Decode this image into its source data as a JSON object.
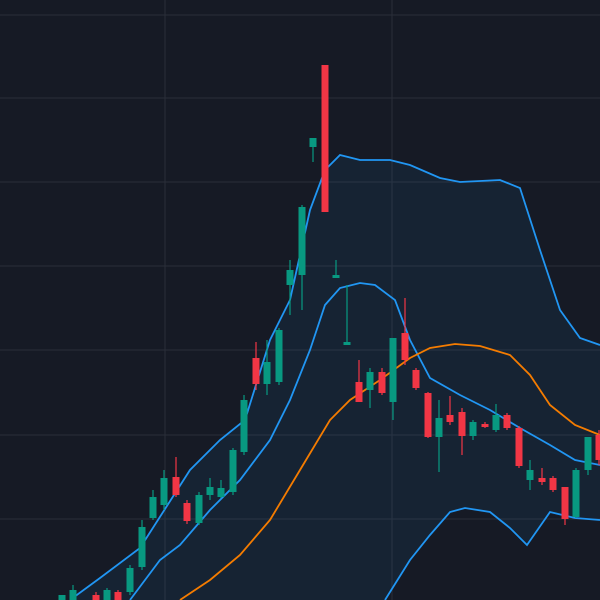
{
  "chart_data": {
    "type": "candlestick",
    "xlim": [
      0,
      600
    ],
    "ylim": [
      0,
      600
    ],
    "xticks": [
      165,
      392
    ],
    "yticks": [
      81,
      165,
      250,
      334,
      418,
      502,
      585
    ],
    "grid": true,
    "up_color": "#089981",
    "down_color": "#f23645",
    "candles": {
      "x": [
        62,
        73,
        96,
        107,
        118,
        130,
        142,
        153,
        164,
        176,
        187,
        199,
        210,
        221,
        233,
        244,
        256,
        267,
        279,
        290,
        302,
        313,
        325,
        336,
        347,
        359,
        370,
        382,
        393,
        405,
        416,
        428,
        439,
        450,
        462,
        473,
        485,
        496,
        507,
        519,
        530,
        542,
        553,
        565,
        576,
        588,
        599
      ],
      "open": [
        0,
        0,
        5,
        0,
        8,
        8,
        33,
        82,
        95,
        123,
        97,
        77,
        105,
        103,
        108,
        148,
        242,
        216,
        218,
        315,
        325,
        453,
        535,
        322,
        255,
        218,
        210,
        228,
        198,
        267,
        230,
        207,
        163,
        185,
        188,
        164,
        176,
        170,
        185,
        172,
        120,
        122,
        122,
        113,
        83,
        130,
        165
      ],
      "high": [
        5,
        15,
        8,
        12,
        10,
        35,
        80,
        110,
        130,
        143,
        100,
        108,
        122,
        120,
        152,
        205,
        258,
        260,
        272,
        340,
        395,
        462,
        535,
        340,
        315,
        240,
        232,
        232,
        262,
        302,
        232,
        208,
        200,
        204,
        192,
        180,
        178,
        196,
        187,
        174,
        140,
        132,
        124,
        113,
        132,
        163,
        170
      ],
      "low": [
        0,
        0,
        0,
        0,
        0,
        5,
        30,
        80,
        90,
        103,
        76,
        75,
        100,
        102,
        105,
        145,
        210,
        205,
        215,
        285,
        290,
        438,
        388,
        322,
        255,
        198,
        192,
        205,
        180,
        235,
        210,
        162,
        128,
        175,
        145,
        160,
        172,
        168,
        170,
        132,
        110,
        115,
        108,
        75,
        82,
        125,
        135
      ],
      "close": [
        5,
        10,
        0,
        10,
        0,
        32,
        73,
        103,
        122,
        105,
        79,
        105,
        113,
        112,
        150,
        200,
        216,
        238,
        270,
        330,
        393,
        462,
        388,
        325,
        258,
        198,
        228,
        207,
        262,
        240,
        212,
        163,
        182,
        178,
        164,
        178,
        173,
        185,
        172,
        134,
        130,
        118,
        110,
        81,
        130,
        163,
        140
      ]
    },
    "lines": [
      {
        "color": "#2196f3",
        "x": [
          70,
          100,
          140,
          190,
          220,
          245,
          270,
          290,
          310,
          325,
          340,
          360,
          390,
          410,
          440,
          460,
          500,
          520,
          540,
          560,
          580,
          600
        ],
        "values": [
          0,
          22,
          52,
          130,
          160,
          180,
          260,
          300,
          390,
          430,
          445,
          440,
          440,
          435,
          422,
          418,
          420,
          412,
          350,
          290,
          262,
          255
        ]
      },
      {
        "color": "#2196f3",
        "x": [
          130,
          160,
          180,
          210,
          240,
          270,
          290,
          310,
          325,
          340,
          360,
          375,
          395,
          410,
          430,
          460,
          490,
          520,
          550,
          575,
          600
        ],
        "values": [
          0,
          40,
          55,
          90,
          120,
          160,
          200,
          250,
          295,
          312,
          317,
          315,
          300,
          260,
          222,
          205,
          190,
          172,
          155,
          140,
          135
        ]
      },
      {
        "color": "#2196f3",
        "x": [
          385,
          410,
          430,
          450,
          465,
          490,
          510,
          527,
          550,
          575,
          600
        ],
        "values": [
          0,
          40,
          65,
          88,
          92,
          88,
          72,
          55,
          88,
          82,
          80
        ]
      },
      {
        "color": "#f57c00",
        "x": [
          180,
          210,
          240,
          270,
          300,
          330,
          350,
          380,
          410,
          430,
          455,
          480,
          510,
          530,
          550,
          575,
          600
        ],
        "values": [
          0,
          20,
          45,
          80,
          130,
          180,
          200,
          220,
          242,
          252,
          256,
          254,
          245,
          225,
          195,
          175,
          165
        ]
      }
    ]
  }
}
